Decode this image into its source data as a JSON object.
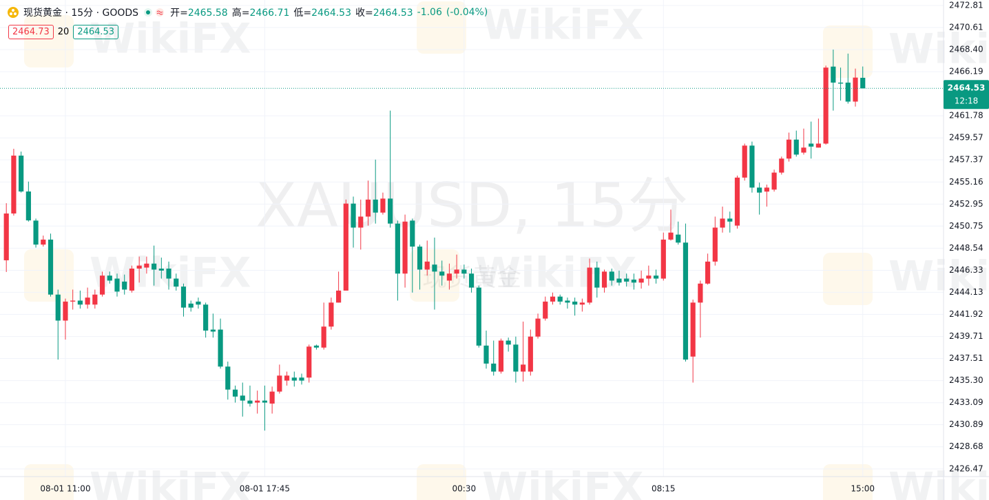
{
  "chart_data": {
    "type": "candlestick",
    "title": "现货黄金 · 15分 · GOODS",
    "ohlc_labels": {
      "open": "开=",
      "high": "高=",
      "low": "低=",
      "close": "收="
    },
    "change": -1.06,
    "change_percent": "(-0.04%)",
    "ask": 2464.73,
    "spread": 20,
    "bid": 2464.53,
    "countdown": "12:18",
    "watermark": "XAUUSD, 15分",
    "watermark_sub": "现货黄金",
    "watermark_overlay": "WikiFX",
    "up_color": "#f23645",
    "down_color": "#089981",
    "categories": [
      null,
      null,
      null,
      null,
      null,
      null,
      null,
      null,
      "08-01 11:00",
      null,
      null,
      null,
      null,
      null,
      null,
      null,
      null,
      null,
      null,
      null,
      null,
      null,
      null,
      null,
      null,
      null,
      null,
      null,
      null,
      null,
      null,
      null,
      null,
      null,
      null,
      "08-01 17:45",
      null,
      null,
      null,
      null,
      null,
      null,
      null,
      null,
      null,
      null,
      null,
      null,
      null,
      null,
      null,
      null,
      null,
      null,
      null,
      null,
      null,
      null,
      null,
      null,
      null,
      null,
      "00:30",
      null,
      null,
      null,
      null,
      null,
      null,
      null,
      null,
      null,
      null,
      null,
      null,
      null,
      null,
      null,
      null,
      null,
      null,
      null,
      null,
      null,
      null,
      null,
      null,
      null,
      null,
      "08:15",
      null,
      null,
      null,
      null,
      null,
      null,
      null,
      null,
      null,
      null,
      null,
      null,
      null,
      null,
      null,
      null,
      null,
      null,
      null,
      null,
      null,
      null,
      null,
      null,
      null,
      null,
      "15:00"
    ],
    "open": [
      2447.33,
      2452.01,
      2457.8,
      2454.21,
      2451.3,
      2448.9,
      2449.4,
      2443.9,
      2441.3,
      2443.2,
      2443.3,
      2442.9,
      2442.9,
      2443.9,
      2445.8,
      2445.5,
      2445.2,
      2444.3,
      2446.5,
      2446.6,
      2447.0,
      2446.5,
      2446.5,
      2445.5,
      2444.7,
      2443.0,
      2443.2,
      2442.9,
      2440.4,
      2440.4,
      2436.7,
      2434.4,
      2433.8,
      2433.3,
      2433.1,
      2433.3,
      2433.0,
      2434.2,
      2435.3,
      2435.6,
      2435.6,
      2435.6,
      2438.8,
      2438.6,
      2440.7,
      2443.1,
      2444.3,
      2453.0,
      2450.6,
      2451.7,
      2453.4,
      2452.1,
      2453.5,
      2451.0,
      2446.0,
      2451.3,
      2448.7,
      2446.4,
      2446.9,
      2446.2,
      2445.3,
      2446.0,
      2446.4,
      2446.0,
      2444.6,
      2438.8,
      2437.0,
      2436.2,
      2439.3,
      2438.9,
      2436.2,
      2436.2,
      2439.7,
      2441.5,
      2443.2,
      2443.7,
      2443.3,
      2443.2,
      2442.9,
      2443.1,
      2446.6,
      2444.6,
      2446.2,
      2445.5,
      2445.5,
      2445.4,
      2445.1,
      2445.5,
      2445.8,
      2445.5,
      2449.4,
      2449.9,
      2449.1,
      2437.7,
      2443.1,
      2445.0,
      2447.2,
      2450.6,
      2451.5,
      2450.8,
      2455.6,
      2458.8,
      2454.6,
      2454.2,
      2454.4,
      2456.1,
      2457.5,
      2459.4,
      2458.1,
      2459.0,
      2458.6,
      2459.0,
      2466.7,
      2465.1,
      2465.1,
      2463.2,
      2465.58
    ],
    "high": [
      2453.04,
      2458.48,
      2458.2,
      2455.2,
      2451.5,
      2449.8,
      2450.0,
      2444.4,
      2443.5,
      2444.4,
      2444.3,
      2444.6,
      2444.4,
      2446.2,
      2446.2,
      2446.0,
      2445.9,
      2446.8,
      2447.7,
      2447.7,
      2448.8,
      2447.6,
      2447.2,
      2446.0,
      2445.0,
      2443.3,
      2443.6,
      2443.1,
      2442.0,
      2441.5,
      2437.2,
      2434.8,
      2435.1,
      2434.8,
      2434.3,
      2434.8,
      2434.7,
      2436.9,
      2436.2,
      2436.2,
      2436.0,
      2438.9,
      2438.9,
      2443.1,
      2443.6,
      2446.2,
      2453.4,
      2453.7,
      2453.4,
      2455.3,
      2457.4,
      2454.1,
      2462.3,
      2451.3,
      2451.9,
      2451.5,
      2448.9,
      2449.3,
      2449.6,
      2447.3,
      2447.0,
      2447.9,
      2446.9,
      2446.5,
      2444.8,
      2440.3,
      2439.3,
      2439.5,
      2439.6,
      2439.7,
      2441.2,
      2440.4,
      2442.0,
      2443.7,
      2444.1,
      2443.9,
      2443.6,
      2443.6,
      2443.5,
      2447.5,
      2447.2,
      2446.4,
      2446.5,
      2446.3,
      2446.0,
      2446.0,
      2446.3,
      2446.8,
      2446.4,
      2450.1,
      2452.4,
      2451.2,
      2451.0,
      2443.4,
      2445.3,
      2448.0,
      2451.7,
      2452.7,
      2452.2,
      2455.8,
      2459.0,
      2459.2,
      2455.1,
      2454.9,
      2456.4,
      2457.7,
      2460.1,
      2460.3,
      2460.5,
      2461.2,
      2461.5,
      2466.8,
      2468.4,
      2466.6,
      2468.0,
      2466.5,
      2466.71
    ],
    "low": [
      2446.16,
      2451.8,
      2454.1,
      2451.2,
      2448.6,
      2448.7,
      2443.7,
      2437.4,
      2439.4,
      2442.4,
      2442.5,
      2442.5,
      2442.5,
      2443.7,
      2445.0,
      2443.7,
      2443.9,
      2444.1,
      2445.1,
      2446.0,
      2444.8,
      2445.5,
      2444.4,
      2444.3,
      2441.7,
      2442.2,
      2442.5,
      2439.6,
      2439.6,
      2436.5,
      2433.4,
      2433.1,
      2431.7,
      2432.7,
      2432.0,
      2430.3,
      2432.0,
      2434.0,
      2434.8,
      2434.7,
      2434.9,
      2435.1,
      2438.4,
      2438.4,
      2440.4,
      2443.1,
      2444.3,
      2448.6,
      2448.4,
      2450.8,
      2451.0,
      2451.9,
      2450.6,
      2443.3,
      2444.6,
      2444.1,
      2444.4,
      2445.8,
      2442.4,
      2444.8,
      2444.4,
      2445.5,
      2445.5,
      2444.1,
      2438.6,
      2436.5,
      2435.8,
      2436.0,
      2438.2,
      2435.1,
      2435.2,
      2435.8,
      2439.5,
      2441.3,
      2442.9,
      2442.9,
      2442.5,
      2441.8,
      2442.2,
      2442.9,
      2443.6,
      2444.1,
      2444.8,
      2444.8,
      2444.7,
      2444.4,
      2444.5,
      2444.8,
      2445.0,
      2445.3,
      2449.3,
      2448.9,
      2437.2,
      2435.1,
      2439.6,
      2444.9,
      2446.8,
      2450.1,
      2450.1,
      2450.5,
      2455.3,
      2454.1,
      2451.9,
      2452.7,
      2454.2,
      2455.9,
      2457.2,
      2457.7,
      2457.9,
      2457.5,
      2458.6,
      2458.9,
      2462.3,
      2463.3,
      2463.0,
      2462.7,
      2464.53
    ],
    "close": [
      2452.01,
      2457.8,
      2454.21,
      2451.32,
      2448.9,
      2449.4,
      2443.9,
      2441.3,
      2443.2,
      2443.3,
      2442.9,
      2443.6,
      2443.9,
      2445.8,
      2445.3,
      2444.2,
      2444.4,
      2446.5,
      2446.8,
      2447.0,
      2446.4,
      2446.3,
      2445.5,
      2444.7,
      2442.6,
      2442.6,
      2442.9,
      2440.3,
      2440.2,
      2436.7,
      2434.4,
      2433.7,
      2433.3,
      2433.0,
      2433.3,
      2433.1,
      2434.2,
      2435.8,
      2435.8,
      2435.3,
      2435.3,
      2438.7,
      2438.6,
      2440.7,
      2443.1,
      2444.3,
      2453.0,
      2450.6,
      2451.7,
      2453.4,
      2452.1,
      2453.5,
      2451.0,
      2446.0,
      2451.2,
      2448.7,
      2446.4,
      2447.2,
      2446.2,
      2445.8,
      2446.0,
      2446.4,
      2446.0,
      2444.6,
      2438.8,
      2437.0,
      2436.2,
      2439.3,
      2438.9,
      2436.2,
      2436.9,
      2439.7,
      2441.5,
      2443.2,
      2443.7,
      2443.2,
      2443.1,
      2442.9,
      2443.1,
      2446.6,
      2444.6,
      2446.2,
      2445.3,
      2445.1,
      2445.2,
      2445.1,
      2445.5,
      2445.8,
      2445.5,
      2449.4,
      2450.1,
      2449.1,
      2437.4,
      2443.1,
      2445.0,
      2447.2,
      2450.6,
      2451.5,
      2451.2,
      2455.6,
      2458.8,
      2454.6,
      2454.1,
      2454.6,
      2456.1,
      2457.5,
      2459.4,
      2457.9,
      2458.6,
      2458.7,
      2459.0,
      2466.6,
      2465.1,
      2465.0,
      2463.2,
      2465.6,
      2464.53
    ],
    "ylim": [
      2425.7,
      2473.36
    ],
    "yticks": [
      2472.81,
      2470.61,
      {
        "value": 2468.4,
        "label": "2468.40"
      },
      2466.19,
      2461.78,
      2459.57,
      2457.37,
      2455.16,
      2452.95,
      2450.75,
      2448.54,
      2446.33,
      2444.13,
      2441.92,
      2439.71,
      2437.51,
      {
        "value": 2435.3,
        "label": "2435.30"
      },
      2433.09,
      2430.89,
      2428.68,
      2426.47
    ],
    "grid": true
  }
}
